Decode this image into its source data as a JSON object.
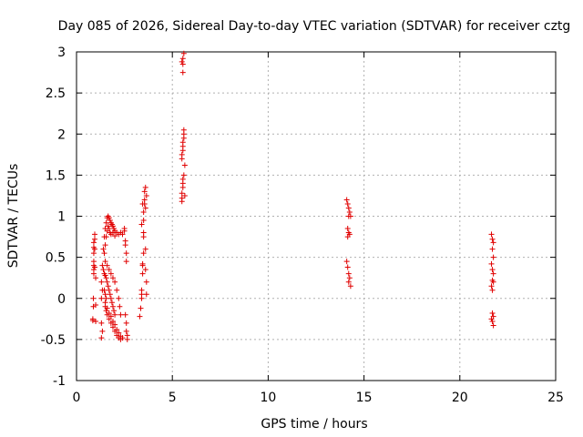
{
  "chart_data": {
    "type": "scatter",
    "title": "Day 085 of 2026, Sidereal Day-to-day VTEC variation (SDTVAR) for receiver cztg",
    "xlabel": "GPS time / hours",
    "ylabel": "SDTVAR / TECUs",
    "xlim": [
      0,
      25
    ],
    "ylim": [
      -1,
      3
    ],
    "x_ticks": [
      0,
      5,
      10,
      15,
      20,
      25
    ],
    "y_ticks": [
      -1,
      -0.5,
      0,
      0.5,
      1,
      1.5,
      2,
      2.5,
      3
    ],
    "grid": true,
    "marker": "+",
    "color": "#e00000",
    "series": [
      {
        "points": [
          [
            0.85,
            -0.27
          ],
          [
            0.85,
            -0.25
          ],
          [
            0.88,
            -0.1
          ],
          [
            0.88,
            0.0
          ],
          [
            0.9,
            0.3
          ],
          [
            0.9,
            0.35
          ],
          [
            0.9,
            0.4
          ],
          [
            0.9,
            0.45
          ],
          [
            0.9,
            0.55
          ],
          [
            0.9,
            0.62
          ],
          [
            0.9,
            0.68
          ],
          [
            0.95,
            0.72
          ],
          [
            0.95,
            0.78
          ],
          [
            0.95,
            0.6
          ],
          [
            0.95,
            0.38
          ],
          [
            1.0,
            0.25
          ],
          [
            1.0,
            -0.08
          ],
          [
            1.0,
            -0.28
          ],
          [
            1.3,
            -0.3
          ],
          [
            1.3,
            -0.48
          ],
          [
            1.35,
            -0.4
          ],
          [
            1.3,
            0.0
          ],
          [
            1.35,
            0.1
          ],
          [
            1.3,
            0.2
          ],
          [
            1.35,
            0.4
          ],
          [
            1.4,
            0.6
          ],
          [
            1.45,
            0.75
          ],
          [
            1.5,
            0.85
          ],
          [
            1.55,
            0.92
          ],
          [
            1.6,
            0.98
          ],
          [
            1.65,
            1.0
          ],
          [
            1.7,
            0.98
          ],
          [
            1.75,
            0.95
          ],
          [
            1.8,
            0.92
          ],
          [
            1.85,
            0.9
          ],
          [
            1.9,
            0.88
          ],
          [
            1.95,
            0.85
          ],
          [
            2.0,
            0.82
          ],
          [
            2.1,
            0.8
          ],
          [
            2.2,
            0.78
          ],
          [
            2.3,
            0.8
          ],
          [
            2.4,
            0.78
          ],
          [
            1.45,
            0.55
          ],
          [
            1.5,
            0.65
          ],
          [
            1.55,
            0.75
          ],
          [
            1.6,
            0.82
          ],
          [
            1.65,
            0.88
          ],
          [
            1.7,
            0.85
          ],
          [
            1.75,
            0.8
          ],
          [
            1.8,
            0.78
          ],
          [
            1.9,
            0.8
          ],
          [
            2.0,
            0.76
          ],
          [
            1.4,
            0.35
          ],
          [
            1.45,
            0.3
          ],
          [
            1.5,
            0.28
          ],
          [
            1.55,
            0.25
          ],
          [
            1.6,
            0.2
          ],
          [
            1.65,
            0.15
          ],
          [
            1.7,
            0.1
          ],
          [
            1.75,
            0.05
          ],
          [
            1.8,
            0.0
          ],
          [
            1.85,
            -0.05
          ],
          [
            1.9,
            -0.1
          ],
          [
            1.95,
            -0.15
          ],
          [
            2.0,
            -0.2
          ],
          [
            1.5,
            0.45
          ],
          [
            1.6,
            0.4
          ],
          [
            1.7,
            0.35
          ],
          [
            1.8,
            0.3
          ],
          [
            1.9,
            0.25
          ],
          [
            2.0,
            0.2
          ],
          [
            2.1,
            0.1
          ],
          [
            2.2,
            0.0
          ],
          [
            2.25,
            -0.1
          ],
          [
            2.3,
            -0.2
          ],
          [
            1.5,
            -0.1
          ],
          [
            1.55,
            -0.15
          ],
          [
            1.6,
            -0.2
          ],
          [
            1.7,
            -0.25
          ],
          [
            1.8,
            -0.3
          ],
          [
            1.9,
            -0.35
          ],
          [
            2.0,
            -0.4
          ],
          [
            2.1,
            -0.45
          ],
          [
            2.2,
            -0.48
          ],
          [
            2.3,
            -0.5
          ],
          [
            2.4,
            -0.48
          ],
          [
            1.5,
            -0.05
          ],
          [
            1.6,
            -0.12
          ],
          [
            1.7,
            -0.18
          ],
          [
            1.8,
            -0.22
          ],
          [
            1.9,
            -0.28
          ],
          [
            2.0,
            -0.32
          ],
          [
            2.1,
            -0.38
          ],
          [
            2.2,
            -0.42
          ],
          [
            2.3,
            -0.46
          ],
          [
            1.45,
            0.1
          ],
          [
            1.5,
            0.05
          ],
          [
            1.55,
            0.0
          ],
          [
            2.5,
            0.85
          ],
          [
            2.5,
            0.82
          ],
          [
            2.55,
            0.7
          ],
          [
            2.55,
            0.65
          ],
          [
            2.6,
            0.55
          ],
          [
            2.6,
            0.45
          ],
          [
            2.6,
            -0.3
          ],
          [
            2.6,
            -0.4
          ],
          [
            2.65,
            -0.45
          ],
          [
            2.65,
            -0.5
          ],
          [
            2.55,
            -0.2
          ],
          [
            3.3,
            -0.22
          ],
          [
            3.35,
            -0.12
          ],
          [
            3.4,
            0.0
          ],
          [
            3.4,
            0.05
          ],
          [
            3.4,
            0.1
          ],
          [
            3.45,
            0.3
          ],
          [
            3.45,
            0.4
          ],
          [
            3.45,
            0.42
          ],
          [
            3.5,
            0.55
          ],
          [
            3.5,
            0.75
          ],
          [
            3.5,
            0.8
          ],
          [
            3.5,
            0.95
          ],
          [
            3.5,
            1.05
          ],
          [
            3.55,
            1.15
          ],
          [
            3.55,
            1.2
          ],
          [
            3.55,
            1.3
          ],
          [
            3.6,
            1.35
          ],
          [
            3.6,
            1.1
          ],
          [
            3.6,
            0.6
          ],
          [
            3.6,
            0.35
          ],
          [
            3.65,
            0.2
          ],
          [
            3.65,
            0.05
          ],
          [
            3.65,
            1.25
          ],
          [
            3.4,
            0.9
          ],
          [
            3.45,
            1.15
          ],
          [
            5.5,
            1.18
          ],
          [
            5.5,
            1.22
          ],
          [
            5.5,
            1.28
          ],
          [
            5.55,
            1.35
          ],
          [
            5.55,
            1.4
          ],
          [
            5.55,
            1.45
          ],
          [
            5.6,
            1.5
          ],
          [
            5.5,
            1.7
          ],
          [
            5.5,
            1.75
          ],
          [
            5.55,
            1.8
          ],
          [
            5.55,
            1.85
          ],
          [
            5.55,
            1.9
          ],
          [
            5.6,
            1.95
          ],
          [
            5.6,
            2.0
          ],
          [
            5.6,
            2.05
          ],
          [
            5.5,
            2.88
          ],
          [
            5.55,
            2.92
          ],
          [
            5.55,
            2.85
          ],
          [
            5.6,
            2.98
          ],
          [
            5.55,
            2.75
          ],
          [
            5.65,
            1.62
          ],
          [
            5.65,
            1.25
          ],
          [
            14.1,
            1.2
          ],
          [
            14.15,
            1.15
          ],
          [
            14.2,
            1.1
          ],
          [
            14.25,
            1.05
          ],
          [
            14.2,
            1.0
          ],
          [
            14.15,
            0.85
          ],
          [
            14.2,
            0.8
          ],
          [
            14.25,
            0.78
          ],
          [
            14.15,
            0.75
          ],
          [
            14.1,
            0.45
          ],
          [
            14.15,
            0.38
          ],
          [
            14.2,
            0.3
          ],
          [
            14.25,
            0.25
          ],
          [
            14.2,
            0.2
          ],
          [
            14.3,
            0.15
          ],
          [
            14.3,
            1.0
          ],
          [
            21.65,
            0.78
          ],
          [
            21.7,
            0.72
          ],
          [
            21.75,
            0.68
          ],
          [
            21.7,
            0.6
          ],
          [
            21.75,
            0.5
          ],
          [
            21.65,
            0.42
          ],
          [
            21.7,
            0.35
          ],
          [
            21.75,
            0.3
          ],
          [
            21.7,
            0.22
          ],
          [
            21.75,
            0.2
          ],
          [
            21.65,
            0.15
          ],
          [
            21.7,
            0.1
          ],
          [
            21.7,
            -0.18
          ],
          [
            21.75,
            -0.22
          ],
          [
            21.65,
            -0.25
          ],
          [
            21.7,
            -0.28
          ],
          [
            21.75,
            -0.33
          ]
        ]
      }
    ]
  }
}
